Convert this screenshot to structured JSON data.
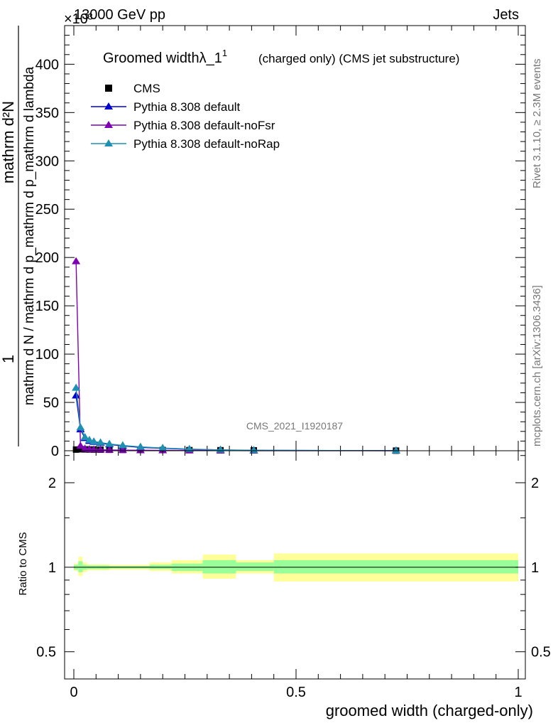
{
  "header": {
    "left": "13000 GeV pp",
    "right": "Jets",
    "exponent": "×10³"
  },
  "side_labels": {
    "rivet": "Rivet 3.1.10, ≥ 2.3M events",
    "mcplots": "mcplots.cern.ch [arXiv:1306.3436]"
  },
  "chart_data": [
    {
      "type": "line",
      "title": "Groomed widthλ_1",
      "title_sup": "1",
      "subtitle": "(charged only) (CMS jet substructure)",
      "watermark": "CMS_2021_I1920187",
      "ylabel_numerator": "1",
      "ylabel_denominator": "mathrm d N / mathrm d p_mathrm d p_mathrm d lambda",
      "ylabel_over": "mathrm d²N",
      "ylim": [
        0,
        440
      ],
      "xlim": [
        0,
        1
      ],
      "yticks": [
        0,
        50,
        100,
        150,
        200,
        250,
        300,
        350,
        400
      ],
      "legend_position": "top-left",
      "series": [
        {
          "name": "CMS",
          "marker": "square",
          "color": "#000000",
          "x": [
            0.005,
            0.015,
            0.025,
            0.035,
            0.045,
            0.06,
            0.08,
            0.11,
            0.15,
            0.2,
            0.26,
            0.33,
            0.405,
            0.725
          ],
          "values": [
            1.2,
            1.5,
            1.4,
            1.3,
            1.2,
            1.1,
            1.0,
            0.9,
            0.8,
            0.7,
            0.6,
            0.5,
            0.4,
            0.1
          ]
        },
        {
          "name": "Pythia 8.308 default",
          "marker": "triangle",
          "color": "#0000cc",
          "x": [
            0.005,
            0.015,
            0.025,
            0.035,
            0.045,
            0.06,
            0.08,
            0.11,
            0.15,
            0.2,
            0.26,
            0.33,
            0.405,
            0.725
          ],
          "values": [
            57,
            22,
            13,
            10,
            9,
            8,
            6.5,
            5,
            3.5,
            2.5,
            1.5,
            0.8,
            0.4,
            0.05
          ]
        },
        {
          "name": "Pythia 8.308 default-noFsr",
          "marker": "triangle",
          "color": "#7f00b2",
          "x": [
            0.005,
            0.015,
            0.025,
            0.035,
            0.045,
            0.06,
            0.08,
            0.11,
            0.15,
            0.2,
            0.26,
            0.33,
            0.405,
            0.725
          ],
          "values": [
            196,
            5,
            2,
            1.5,
            1.2,
            1,
            0.8,
            0.6,
            0.5,
            0.4,
            0.3,
            0.2,
            0.1,
            0.02
          ]
        },
        {
          "name": "Pythia 8.308 default-noRap",
          "marker": "triangle",
          "color": "#1f8fb2",
          "x": [
            0.005,
            0.015,
            0.025,
            0.035,
            0.045,
            0.06,
            0.08,
            0.11,
            0.15,
            0.2,
            0.26,
            0.33,
            0.405,
            0.725
          ],
          "values": [
            65,
            24,
            14,
            11,
            9.5,
            8.5,
            7,
            5.5,
            4,
            2.8,
            1.7,
            0.9,
            0.5,
            0.05
          ]
        }
      ]
    },
    {
      "type": "area",
      "ylabel": "Ratio to CMS",
      "xlabel": "groomed width (charged-only)",
      "xlim": [
        0,
        1
      ],
      "ylim": [
        0.4,
        2.6
      ],
      "log_y": true,
      "yticks": [
        0.5,
        1,
        2
      ],
      "xticks": [
        0,
        0.5,
        1
      ],
      "reference_line": 1,
      "band_colors": {
        "inner": "#99ff99",
        "outer": "#ffff99"
      },
      "bins": [
        {
          "x": [
            0.0,
            0.01
          ],
          "inner": [
            0.98,
            1.02
          ],
          "outer": [
            0.97,
            1.03
          ]
        },
        {
          "x": [
            0.01,
            0.02
          ],
          "inner": [
            0.96,
            1.05
          ],
          "outer": [
            0.93,
            1.09
          ]
        },
        {
          "x": [
            0.02,
            0.03
          ],
          "inner": [
            0.98,
            1.02
          ],
          "outer": [
            0.96,
            1.04
          ]
        },
        {
          "x": [
            0.03,
            0.05
          ],
          "inner": [
            0.985,
            1.015
          ],
          "outer": [
            0.975,
            1.025
          ]
        },
        {
          "x": [
            0.05,
            0.08
          ],
          "inner": [
            0.985,
            1.015
          ],
          "outer": [
            0.975,
            1.025
          ]
        },
        {
          "x": [
            0.08,
            0.17
          ],
          "inner": [
            0.99,
            1.01
          ],
          "outer": [
            0.98,
            1.02
          ]
        },
        {
          "x": [
            0.17,
            0.22
          ],
          "inner": [
            0.985,
            1.02
          ],
          "outer": [
            0.97,
            1.04
          ]
        },
        {
          "x": [
            0.22,
            0.29
          ],
          "inner": [
            0.97,
            1.03
          ],
          "outer": [
            0.95,
            1.06
          ]
        },
        {
          "x": [
            0.29,
            0.365
          ],
          "inner": [
            0.95,
            1.06
          ],
          "outer": [
            0.91,
            1.11
          ]
        },
        {
          "x": [
            0.365,
            0.45
          ],
          "inner": [
            0.97,
            1.04
          ],
          "outer": [
            0.95,
            1.06
          ]
        },
        {
          "x": [
            0.45,
            1.0
          ],
          "inner": [
            0.95,
            1.06
          ],
          "outer": [
            0.89,
            1.12
          ]
        }
      ]
    }
  ]
}
